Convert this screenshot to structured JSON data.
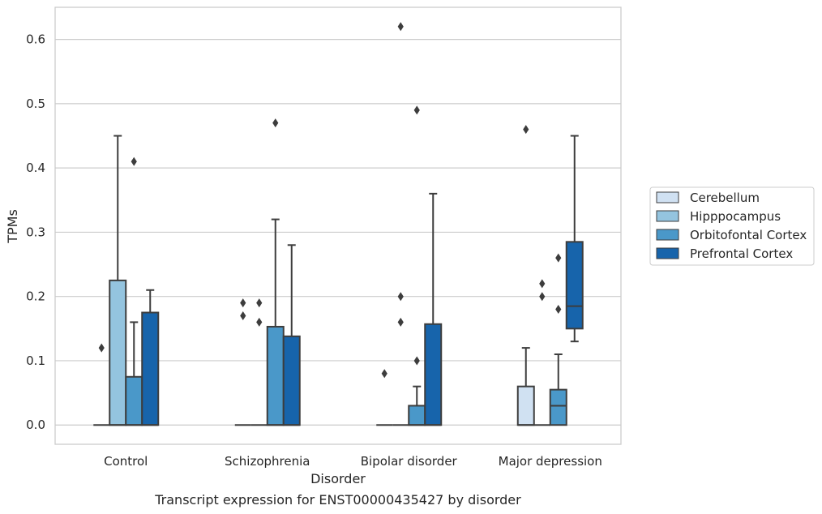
{
  "caption": "Transcript expression for ENST00000435427 by disorder",
  "chart_data": {
    "type": "boxplot",
    "xlabel": "Disorder",
    "ylabel": "TPMs",
    "ylim": [
      -0.03,
      0.65
    ],
    "yticks": [
      0.0,
      0.1,
      0.2,
      0.3,
      0.4,
      0.5,
      0.6
    ],
    "ytick_labels": [
      "0.0",
      "0.1",
      "0.2",
      "0.3",
      "0.4",
      "0.5",
      "0.6"
    ],
    "categories": [
      "Control",
      "Schizophrenia",
      "Bipolar disorder",
      "Major depression"
    ],
    "grid": "horizontal",
    "legend_position": "right",
    "series": [
      {
        "name": "Cerebellum",
        "color": "#d0e1f2",
        "boxes": [
          {
            "q1": 0,
            "median": 0,
            "q3": 0,
            "whislo": 0,
            "whishi": 0,
            "fliers": [
              0.12
            ]
          },
          {
            "q1": 0,
            "median": 0,
            "q3": 0,
            "whislo": 0,
            "whishi": 0,
            "fliers": [
              0.17,
              0.19
            ]
          },
          {
            "q1": 0,
            "median": 0,
            "q3": 0,
            "whislo": 0,
            "whishi": 0,
            "fliers": [
              0.08
            ]
          },
          {
            "q1": 0,
            "median": 0,
            "q3": 0.06,
            "whislo": 0,
            "whishi": 0.12,
            "fliers": [
              0.46
            ]
          }
        ]
      },
      {
        "name": "Hipppocampus",
        "color": "#94c4df",
        "boxes": [
          {
            "q1": 0,
            "median": 0,
            "q3": 0.225,
            "whislo": 0,
            "whishi": 0.45,
            "fliers": []
          },
          {
            "q1": 0,
            "median": 0,
            "q3": 0,
            "whislo": 0,
            "whishi": 0,
            "fliers": [
              0.16,
              0.19
            ]
          },
          {
            "q1": 0,
            "median": 0,
            "q3": 0,
            "whislo": 0,
            "whishi": 0,
            "fliers": [
              0.16,
              0.2,
              0.62
            ]
          },
          {
            "q1": 0,
            "median": 0,
            "q3": 0,
            "whislo": 0,
            "whishi": 0,
            "fliers": [
              0.2,
              0.22
            ]
          }
        ]
      },
      {
        "name": "Orbitofontal Cortex",
        "color": "#4a98c9",
        "boxes": [
          {
            "q1": 0,
            "median": 0,
            "q3": 0.075,
            "whislo": 0,
            "whishi": 0.16,
            "fliers": [
              0.41
            ]
          },
          {
            "q1": 0,
            "median": 0,
            "q3": 0.153,
            "whislo": 0,
            "whishi": 0.32,
            "fliers": [
              0.47
            ]
          },
          {
            "q1": 0,
            "median": 0,
            "q3": 0.03,
            "whislo": 0,
            "whishi": 0.06,
            "fliers": [
              0.1,
              0.49
            ]
          },
          {
            "q1": 0,
            "median": 0.03,
            "q3": 0.055,
            "whislo": 0,
            "whishi": 0.11,
            "fliers": [
              0.18,
              0.26
            ]
          }
        ]
      },
      {
        "name": "Prefrontal Cortex",
        "color": "#1764ab",
        "boxes": [
          {
            "q1": 0,
            "median": 0,
            "q3": 0.175,
            "whislo": 0,
            "whishi": 0.21,
            "fliers": []
          },
          {
            "q1": 0,
            "median": 0,
            "q3": 0.138,
            "whislo": 0,
            "whishi": 0.28,
            "fliers": []
          },
          {
            "q1": 0,
            "median": 0,
            "q3": 0.157,
            "whislo": 0,
            "whishi": 0.36,
            "fliers": []
          },
          {
            "q1": 0.15,
            "median": 0.185,
            "q3": 0.285,
            "whislo": 0.13,
            "whishi": 0.45,
            "fliers": []
          }
        ]
      }
    ]
  }
}
